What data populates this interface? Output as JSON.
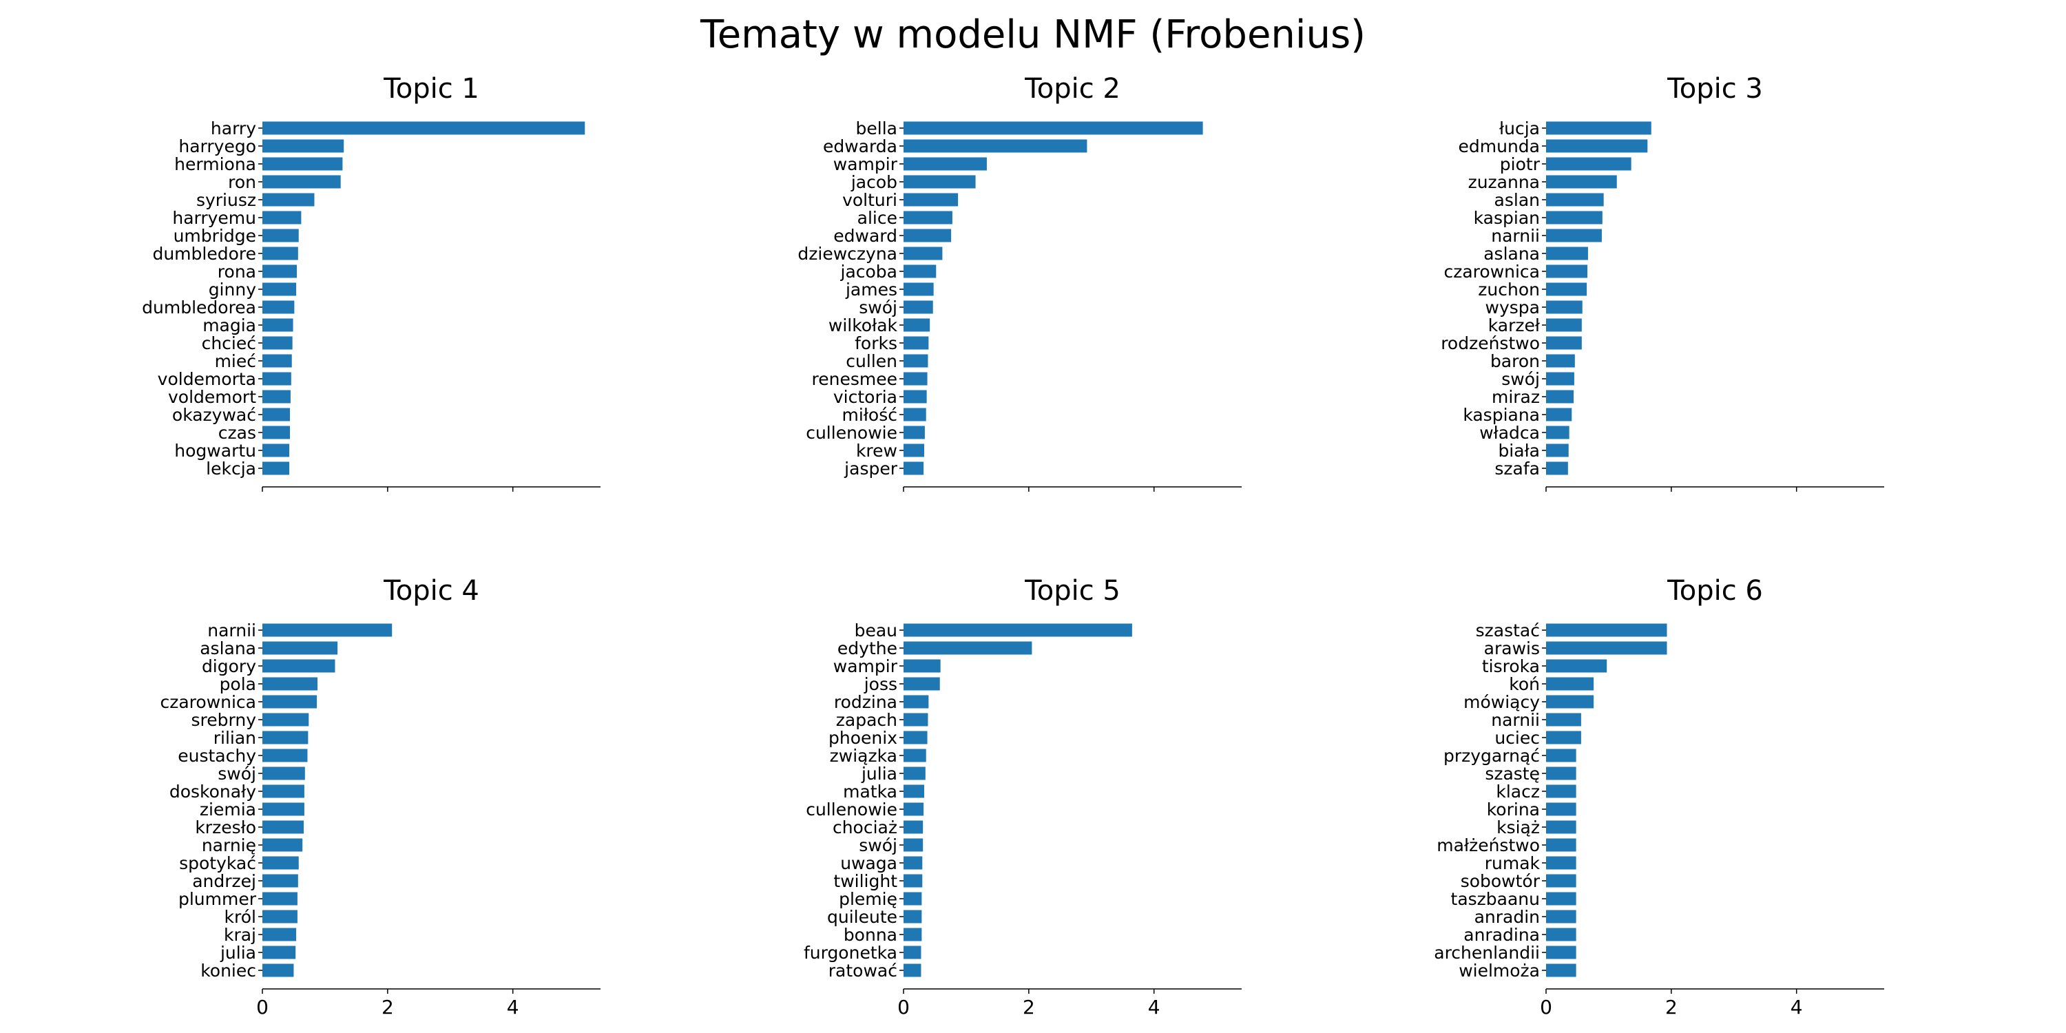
{
  "suptitle": "Tematy w modelu NMF (Frobenius)",
  "bar_color": "#1f77b4",
  "chart_data": [
    {
      "type": "bar",
      "orientation": "horizontal",
      "title": "Topic 1",
      "categories": [
        "harry",
        "harryego",
        "hermiona",
        "ron",
        "syriusz",
        "harryemu",
        "umbridge",
        "dumbledore",
        "rona",
        "ginny",
        "dumbledorea",
        "magia",
        "chcieć",
        "mieć",
        "voldemorta",
        "voldemort",
        "okazywać",
        "czas",
        "hogwartu",
        "lekcja"
      ],
      "values": [
        5.15,
        1.3,
        1.28,
        1.25,
        0.83,
        0.62,
        0.58,
        0.57,
        0.55,
        0.54,
        0.51,
        0.49,
        0.48,
        0.47,
        0.46,
        0.45,
        0.44,
        0.44,
        0.43,
        0.43
      ],
      "xlim": [
        0,
        5.4
      ],
      "xticks": [
        "0",
        "2",
        "4"
      ],
      "xtick_values": [
        0,
        2,
        4
      ],
      "show_xticklabels": false
    },
    {
      "type": "bar",
      "orientation": "horizontal",
      "title": "Topic 2",
      "categories": [
        "bella",
        "edwarda",
        "wampir",
        "jacob",
        "volturi",
        "alice",
        "edward",
        "dziewczyna",
        "jacoba",
        "james",
        "swój",
        "wilkołak",
        "forks",
        "cullen",
        "renesmee",
        "victoria",
        "miłość",
        "cullenowie",
        "krew",
        "jasper"
      ],
      "values": [
        4.78,
        2.93,
        1.33,
        1.15,
        0.87,
        0.78,
        0.76,
        0.62,
        0.52,
        0.48,
        0.47,
        0.42,
        0.4,
        0.39,
        0.38,
        0.37,
        0.36,
        0.34,
        0.33,
        0.32
      ],
      "xlim": [
        0,
        5.4
      ],
      "xticks": [
        "0",
        "2",
        "4"
      ],
      "xtick_values": [
        0,
        2,
        4
      ],
      "show_xticklabels": false
    },
    {
      "type": "bar",
      "orientation": "horizontal",
      "title": "Topic 3",
      "categories": [
        "łucja",
        "edmunda",
        "piotr",
        "zuzanna",
        "aslan",
        "kaspian",
        "narnii",
        "aslana",
        "czarownica",
        "zuchon",
        "wyspa",
        "karzeł",
        "rodzeństwo",
        "baron",
        "swój",
        "miraz",
        "kaspiana",
        "władca",
        "biała",
        "szafa"
      ],
      "values": [
        1.68,
        1.62,
        1.36,
        1.13,
        0.92,
        0.9,
        0.89,
        0.67,
        0.66,
        0.65,
        0.58,
        0.57,
        0.57,
        0.46,
        0.45,
        0.44,
        0.41,
        0.37,
        0.36,
        0.35
      ],
      "xlim": [
        0,
        5.4
      ],
      "xticks": [
        "0",
        "2",
        "4"
      ],
      "xtick_values": [
        0,
        2,
        4
      ],
      "show_xticklabels": false
    },
    {
      "type": "bar",
      "orientation": "horizontal",
      "title": "Topic 4",
      "categories": [
        "narnii",
        "aslana",
        "digory",
        "pola",
        "czarownica",
        "srebrny",
        "rilian",
        "eustachy",
        "swój",
        "doskonały",
        "ziemia",
        "krzesło",
        "narnię",
        "spotykać",
        "andrzej",
        "plummer",
        "król",
        "kraj",
        "julia",
        "koniec"
      ],
      "values": [
        2.07,
        1.2,
        1.16,
        0.88,
        0.87,
        0.74,
        0.73,
        0.72,
        0.68,
        0.67,
        0.67,
        0.66,
        0.64,
        0.58,
        0.57,
        0.56,
        0.56,
        0.54,
        0.53,
        0.5
      ],
      "xlim": [
        0,
        5.4
      ],
      "xticks": [
        "0",
        "2",
        "4"
      ],
      "xtick_values": [
        0,
        2,
        4
      ],
      "show_xticklabels": true
    },
    {
      "type": "bar",
      "orientation": "horizontal",
      "title": "Topic 5",
      "categories": [
        "beau",
        "edythe",
        "wampir",
        "joss",
        "rodzina",
        "zapach",
        "phoenix",
        "związka",
        "julia",
        "matka",
        "cullenowie",
        "chociaż",
        "swój",
        "uwaga",
        "twilight",
        "plemię",
        "quileute",
        "bonna",
        "furgonetka",
        "ratować"
      ],
      "values": [
        3.65,
        2.05,
        0.59,
        0.58,
        0.4,
        0.39,
        0.38,
        0.36,
        0.35,
        0.33,
        0.32,
        0.31,
        0.31,
        0.3,
        0.3,
        0.29,
        0.29,
        0.29,
        0.28,
        0.28
      ],
      "xlim": [
        0,
        5.4
      ],
      "xticks": [
        "0",
        "2",
        "4"
      ],
      "xtick_values": [
        0,
        2,
        4
      ],
      "show_xticklabels": true
    },
    {
      "type": "bar",
      "orientation": "horizontal",
      "title": "Topic 6",
      "categories": [
        "szastać",
        "arawis",
        "tisroka",
        "koń",
        "mówiący",
        "narnii",
        "uciec",
        "przygarnąć",
        "szastę",
        "klacz",
        "korina",
        "książ",
        "małżeństwo",
        "rumak",
        "sobowtór",
        "taszbaanu",
        "anradin",
        "anradina",
        "archenlandii",
        "wielmoża"
      ],
      "values": [
        1.93,
        1.93,
        0.97,
        0.76,
        0.76,
        0.56,
        0.56,
        0.48,
        0.48,
        0.48,
        0.48,
        0.48,
        0.48,
        0.48,
        0.48,
        0.48,
        0.48,
        0.48,
        0.48,
        0.48
      ],
      "xlim": [
        0,
        5.4
      ],
      "xticks": [
        "0",
        "2",
        "4"
      ],
      "xtick_values": [
        0,
        2,
        4
      ],
      "show_xticklabels": true
    }
  ]
}
